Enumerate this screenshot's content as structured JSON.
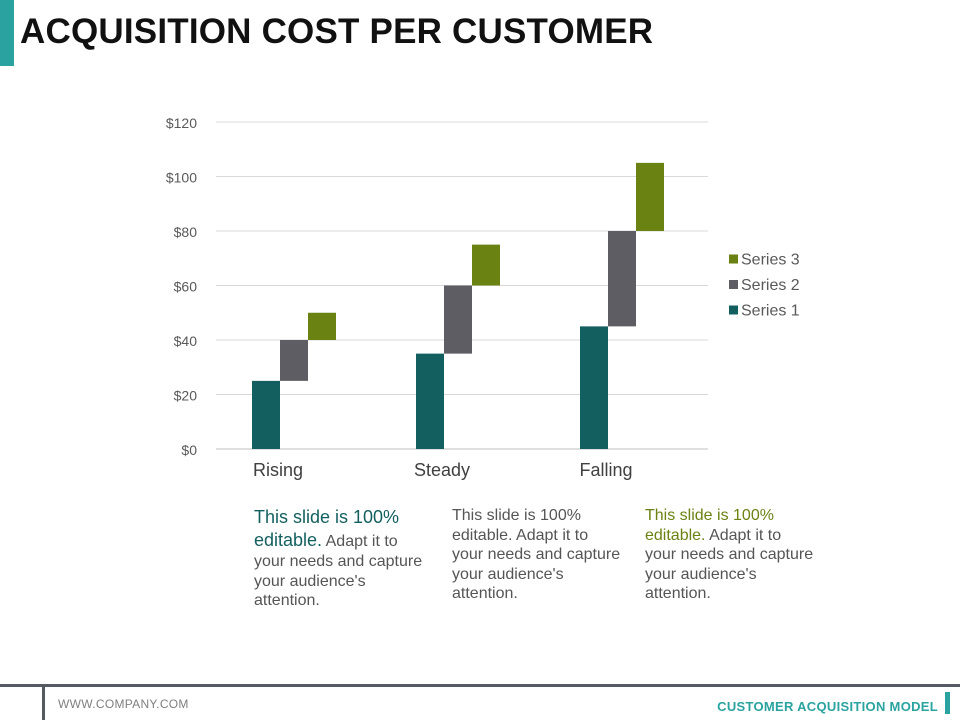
{
  "title": "ACQUISITION COST PER CUSTOMER",
  "colors": {
    "series1": "#135f60",
    "series2": "#5d5d63",
    "series3": "#6a8212",
    "accent": "#2aa3a0"
  },
  "chart_data": {
    "type": "bar",
    "subtype": "stacked-waterfall",
    "title": "",
    "categories": [
      "Rising",
      "Steady",
      "Falling"
    ],
    "series": [
      {
        "name": "Series 1",
        "base": [
          0,
          0,
          0
        ],
        "values": [
          25,
          35,
          45
        ]
      },
      {
        "name": "Series 2",
        "base": [
          25,
          35,
          45
        ],
        "values": [
          15,
          25,
          35
        ]
      },
      {
        "name": "Series 3",
        "base": [
          40,
          60,
          80
        ],
        "values": [
          10,
          15,
          25
        ]
      }
    ],
    "ylim": [
      0,
      120
    ],
    "yticks": [
      "$0",
      "$20",
      "$40",
      "$60",
      "$80",
      "$100",
      "$120"
    ],
    "xlabel": "",
    "ylabel": "",
    "grid": true,
    "legend": [
      "Series 3",
      "Series 2",
      "Series 1"
    ],
    "legend_position": "right"
  },
  "descriptions": [
    {
      "highlight": "This slide is 100% editable.",
      "rest": " Adapt it to your needs and capture your audience's attention."
    },
    {
      "highlight": "",
      "rest": "This slide is 100% editable. Adapt it to your needs and capture your audience's attention."
    },
    {
      "highlight": "This slide is 100% editable.",
      "rest": " Adapt it to your needs and capture your audience's attention."
    }
  ],
  "footer": {
    "url": "WWW.COMPANY.COM",
    "label": "CUSTOMER ACQUISITION MODEL"
  }
}
